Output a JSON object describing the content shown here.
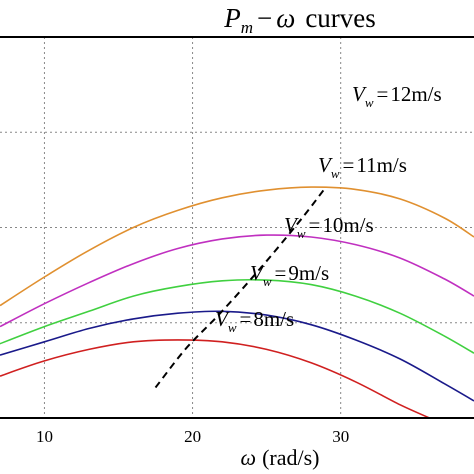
{
  "chart_data": {
    "type": "line",
    "title": {
      "lhs": "P",
      "lhs_sub": "m",
      "minus": "−",
      "omega": "ω",
      "rest": "curves"
    },
    "xlabel": {
      "omega": "ω",
      "unit": "(rad/s)"
    },
    "ylabel": "",
    "x_ticks": [
      10,
      20,
      30
    ],
    "xlim": [
      7,
      39
    ],
    "ylim": [
      0,
      1
    ],
    "y_tick_positions": [
      0.25,
      0.5,
      0.75,
      1.0
    ],
    "grid": true,
    "series": [
      {
        "name": "8",
        "label": {
          "V": "V",
          "w": "w",
          "eq": "=",
          "value": "8",
          "unit": "m/s"
        },
        "color": "#d02020",
        "x": [
          7,
          10,
          13,
          16,
          19,
          22,
          25,
          28,
          31,
          34,
          36
        ],
        "y": [
          0.11,
          0.15,
          0.18,
          0.2,
          0.205,
          0.2,
          0.18,
          0.145,
          0.095,
          0.035,
          0.0
        ]
      },
      {
        "name": "9",
        "label": {
          "V": "V",
          "w": "w",
          "eq": "=",
          "value": "9",
          "unit": "m/s"
        },
        "color": "#1a1a8a",
        "x": [
          7,
          10,
          13,
          16,
          19,
          22,
          25,
          28,
          31,
          34,
          37,
          39
        ],
        "y": [
          0.165,
          0.2,
          0.235,
          0.26,
          0.275,
          0.28,
          0.27,
          0.245,
          0.205,
          0.155,
          0.09,
          0.045
        ]
      },
      {
        "name": "10",
        "label": {
          "V": "V",
          "w": "w",
          "eq": "=",
          "value": "10",
          "unit": "m/s"
        },
        "color": "#40d040",
        "x": [
          7,
          10,
          13,
          16,
          19,
          22,
          25,
          28,
          31,
          34,
          37,
          39
        ],
        "y": [
          0.195,
          0.24,
          0.28,
          0.32,
          0.345,
          0.36,
          0.362,
          0.35,
          0.32,
          0.275,
          0.215,
          0.17
        ]
      },
      {
        "name": "11",
        "label": {
          "V": "V",
          "w": "w",
          "eq": "=",
          "value": "11",
          "unit": "m/s"
        },
        "color": "#c030c0",
        "x": [
          7,
          10,
          13,
          16,
          19,
          22,
          25,
          28,
          31,
          34,
          37,
          39
        ],
        "y": [
          0.24,
          0.3,
          0.355,
          0.405,
          0.445,
          0.47,
          0.48,
          0.475,
          0.455,
          0.42,
          0.365,
          0.32
        ]
      },
      {
        "name": "12",
        "label": {
          "V": "V",
          "w": "w",
          "eq": "=",
          "value": "12",
          "unit": "m/s"
        },
        "color": "#e09030",
        "x": [
          7,
          10,
          13,
          16,
          19,
          22,
          25,
          28,
          31,
          34,
          37,
          39
        ],
        "y": [
          0.295,
          0.37,
          0.44,
          0.5,
          0.545,
          0.578,
          0.598,
          0.606,
          0.6,
          0.575,
          0.525,
          0.475
        ]
      }
    ],
    "mppt_curve": {
      "style": "dashed",
      "color": "#000000",
      "x": [
        17.5,
        19.5,
        21.5,
        23.5,
        25.5,
        27.5,
        29.0
      ],
      "y": [
        0.08,
        0.18,
        0.26,
        0.345,
        0.435,
        0.53,
        0.606
      ]
    }
  }
}
